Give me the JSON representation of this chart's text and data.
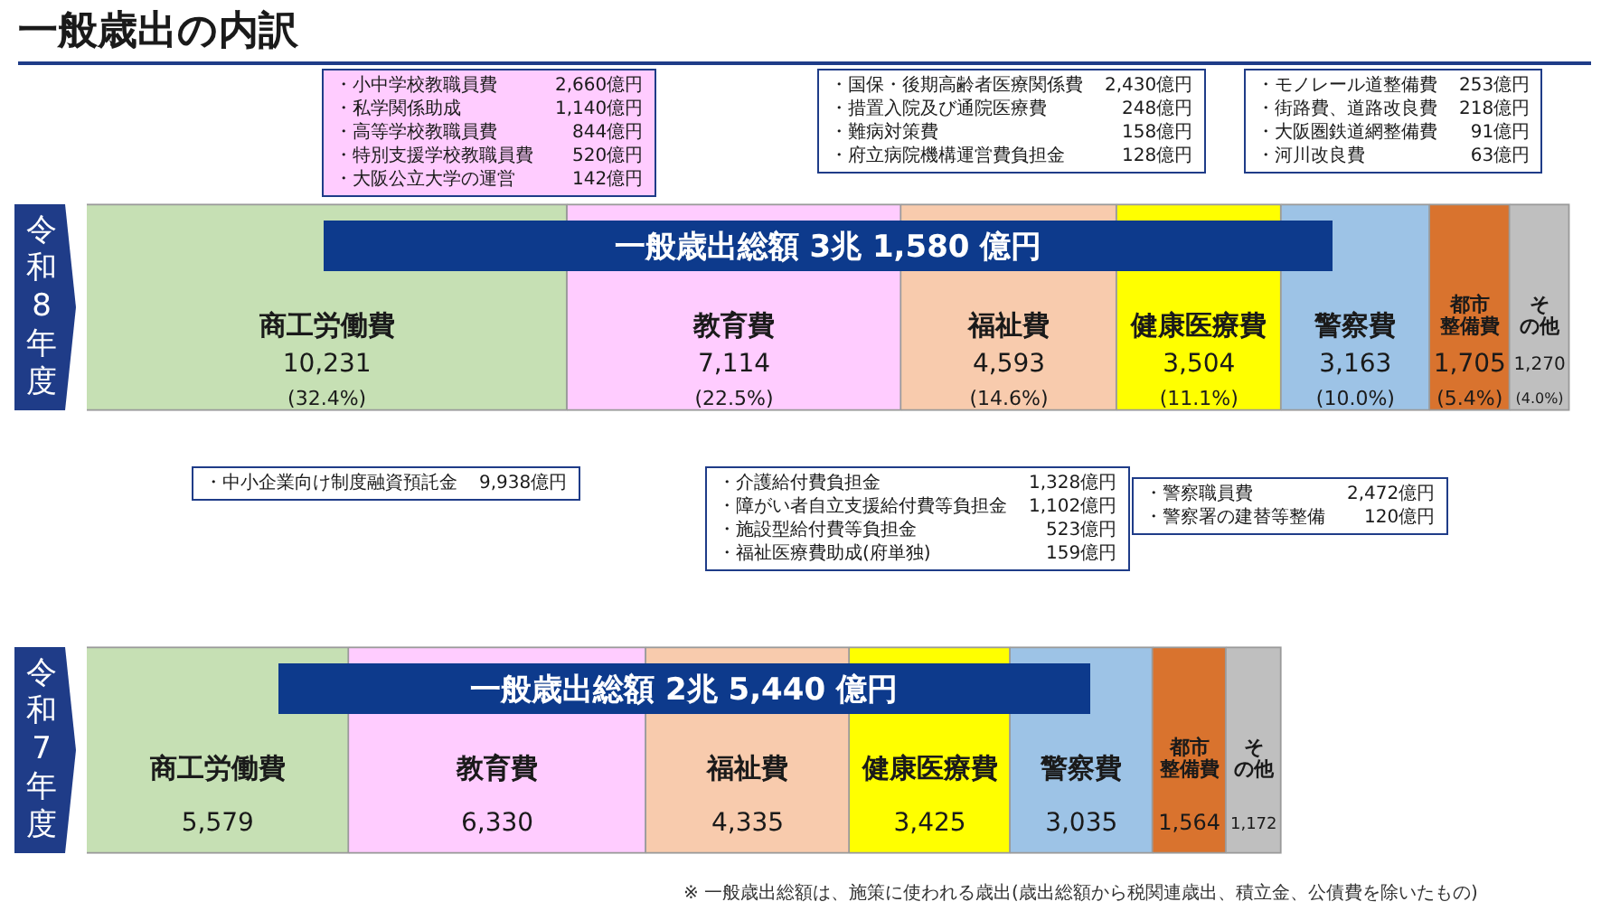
{
  "chart_data": {
    "type": "bar",
    "orientation": "horizontal",
    "stacked": true,
    "title": "一般歳出の内訳",
    "categories": [
      "令和8年度",
      "令和7年度"
    ],
    "series": [
      {
        "name": "商工労働費",
        "color": "#c6e0b4",
        "values": [
          10231,
          5579
        ],
        "value_labels": [
          "10,231\n(32.4%)",
          "5,579"
        ]
      },
      {
        "name": "教育費",
        "color": "#ffccff",
        "values": [
          7114,
          6330
        ],
        "value_labels": [
          "7,114\n(22.5%)",
          "6,330"
        ]
      },
      {
        "name": "福祉費",
        "color": "#f8cbad",
        "values": [
          4593,
          4335
        ],
        "value_labels": [
          "4,593\n(14.6%)",
          "4,335"
        ]
      },
      {
        "name": "健康医療費",
        "color": "#ffff00",
        "values": [
          3504,
          3425
        ],
        "value_labels": [
          "3,504\n(11.1%)",
          "3,425"
        ]
      },
      {
        "name": "警察費",
        "color": "#9dc3e6",
        "values": [
          3163,
          3035
        ],
        "value_labels": [
          "3,163\n(10.0%)",
          "3,035"
        ]
      },
      {
        "name": "都市整備費",
        "color": "#d9732e",
        "values": [
          1705,
          1564
        ],
        "value_labels": [
          "1,705\n(5.4%)",
          "1,564"
        ]
      },
      {
        "name": "その他",
        "color": "#bfbfbf",
        "values": [
          1270,
          1172
        ],
        "value_labels": [
          "1,270\n(4.0%)",
          "1,172"
        ]
      }
    ],
    "totals": [
      "一般歳出総額 3兆 1,580 億円",
      "一般歳出総額 2兆 5,440 億円"
    ],
    "annotations": [
      "・小中学校教職員費 2,660億円",
      "・私学関係助成 1,140億円",
      "・高等学校教職員費 844億円",
      "・特別支援学校教職員費 520億円",
      "・大阪公立大学の運営 142億円",
      "・国保・後期高齢者医療関係費 2,430億円",
      "・措置入院及び通院医療費 248億円",
      "・難病対策費 158億円",
      "・府立病院機構運営費負担金 128億円",
      "・モノレール道整備費 253億円",
      "・街路費、道路改良費 218億円",
      "・大阪圏鉄道網整備費 91億円",
      "・河川改良費 63億円",
      "・中小企業向け制度融資預託金 9,938億円",
      "・介護給付費負担金 1,328億円",
      "・障がい者自立支援給付費等負担金 1,102億円",
      "・施設型給付費等負担金 523億円",
      "・福祉医療費助成(府単独) 159億円",
      "・警察職員費 2,472億円",
      "・警察署の建替等整備 120億円",
      "※ 一般歳出総額は、施策に使われる歳出(歳出総額から税関連歳出、積立金、公債費を除いたもの)"
    ]
  }
}
